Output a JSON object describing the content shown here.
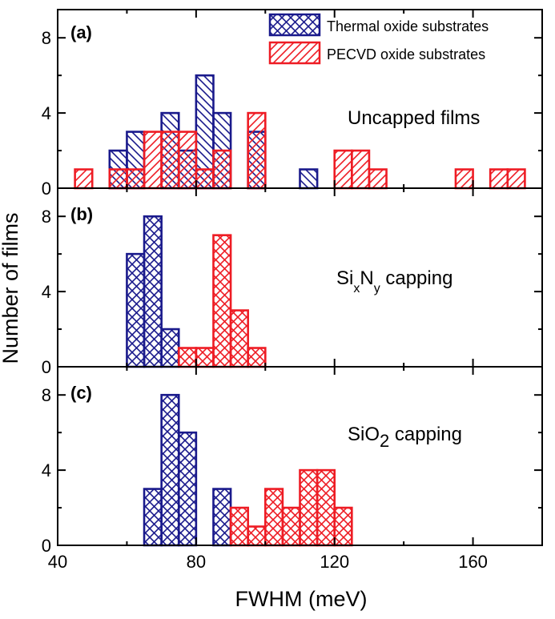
{
  "chart_data": {
    "type": "bar",
    "xlabel": "FWHM  (meV)",
    "ylabel": "Number of films",
    "xlim": [
      40,
      180
    ],
    "x_ticks": [
      "40",
      "80",
      "120",
      "160"
    ],
    "bin_width": 5,
    "colors": {
      "thermal": "#1a1a8c",
      "pecvd": "#ee1c24"
    },
    "legend": [
      {
        "name": "Thermal oxide substrates",
        "pattern": "crosshatch",
        "color": "#1a1a8c"
      },
      {
        "name": "PECVD oxide substrates",
        "pattern": "hatch",
        "color": "#ee1c24"
      }
    ],
    "panels": [
      {
        "label": "(a)",
        "annotation_parts": [
          "Uncapped films"
        ],
        "ylim": [
          0,
          9.5
        ],
        "y_ticks": [
          "0",
          "4",
          "8"
        ],
        "series": [
          {
            "name": "Thermal oxide substrates",
            "pattern": "backslash",
            "bins": [
              [
                57.5,
                2
              ],
              [
                62.5,
                3
              ],
              [
                72.5,
                4
              ],
              [
                77.5,
                2
              ],
              [
                82.5,
                6
              ],
              [
                87.5,
                4
              ],
              [
                97.5,
                3
              ],
              [
                112.5,
                1
              ]
            ]
          },
          {
            "name": "PECVD oxide substrates",
            "pattern": "hatch",
            "bins": [
              [
                47.5,
                1
              ],
              [
                57.5,
                1
              ],
              [
                62.5,
                1
              ],
              [
                67.5,
                3
              ],
              [
                72.5,
                3
              ],
              [
                77.5,
                3
              ],
              [
                82.5,
                1
              ],
              [
                87.5,
                2
              ],
              [
                97.5,
                4
              ],
              [
                122.5,
                2
              ],
              [
                127.5,
                2
              ],
              [
                132.5,
                1
              ],
              [
                157.5,
                1
              ],
              [
                167.5,
                1
              ],
              [
                172.5,
                1
              ]
            ]
          }
        ]
      },
      {
        "label": "(b)",
        "annotation_parts": [
          "Si",
          "x",
          "N",
          "y",
          " capping"
        ],
        "ylim": [
          0,
          9.5
        ],
        "y_ticks": [
          "0",
          "4",
          "8"
        ],
        "series": [
          {
            "name": "Thermal oxide substrates",
            "pattern": "crosshatch",
            "bins": [
              [
                62.5,
                6
              ],
              [
                67.5,
                8
              ],
              [
                72.5,
                2
              ]
            ]
          },
          {
            "name": "PECVD oxide substrates",
            "pattern": "crosshatch",
            "bins": [
              [
                77.5,
                1
              ],
              [
                82.5,
                1
              ],
              [
                87.5,
                7
              ],
              [
                92.5,
                3
              ],
              [
                97.5,
                1
              ]
            ]
          }
        ]
      },
      {
        "label": "(c)",
        "annotation_parts": [
          "SiO",
          "2",
          " capping"
        ],
        "ylim": [
          0,
          9.5
        ],
        "y_ticks": [
          "0",
          "4",
          "8"
        ],
        "series": [
          {
            "name": "Thermal oxide substrates",
            "pattern": "crosshatch",
            "bins": [
              [
                67.5,
                3
              ],
              [
                72.5,
                8
              ],
              [
                77.5,
                6
              ],
              [
                87.5,
                3
              ]
            ]
          },
          {
            "name": "PECVD oxide substrates",
            "pattern": "crosshatch",
            "bins": [
              [
                92.5,
                2
              ],
              [
                97.5,
                1
              ],
              [
                102.5,
                3
              ],
              [
                107.5,
                2
              ],
              [
                112.5,
                4
              ],
              [
                117.5,
                4
              ],
              [
                122.5,
                2
              ]
            ]
          }
        ]
      }
    ]
  }
}
